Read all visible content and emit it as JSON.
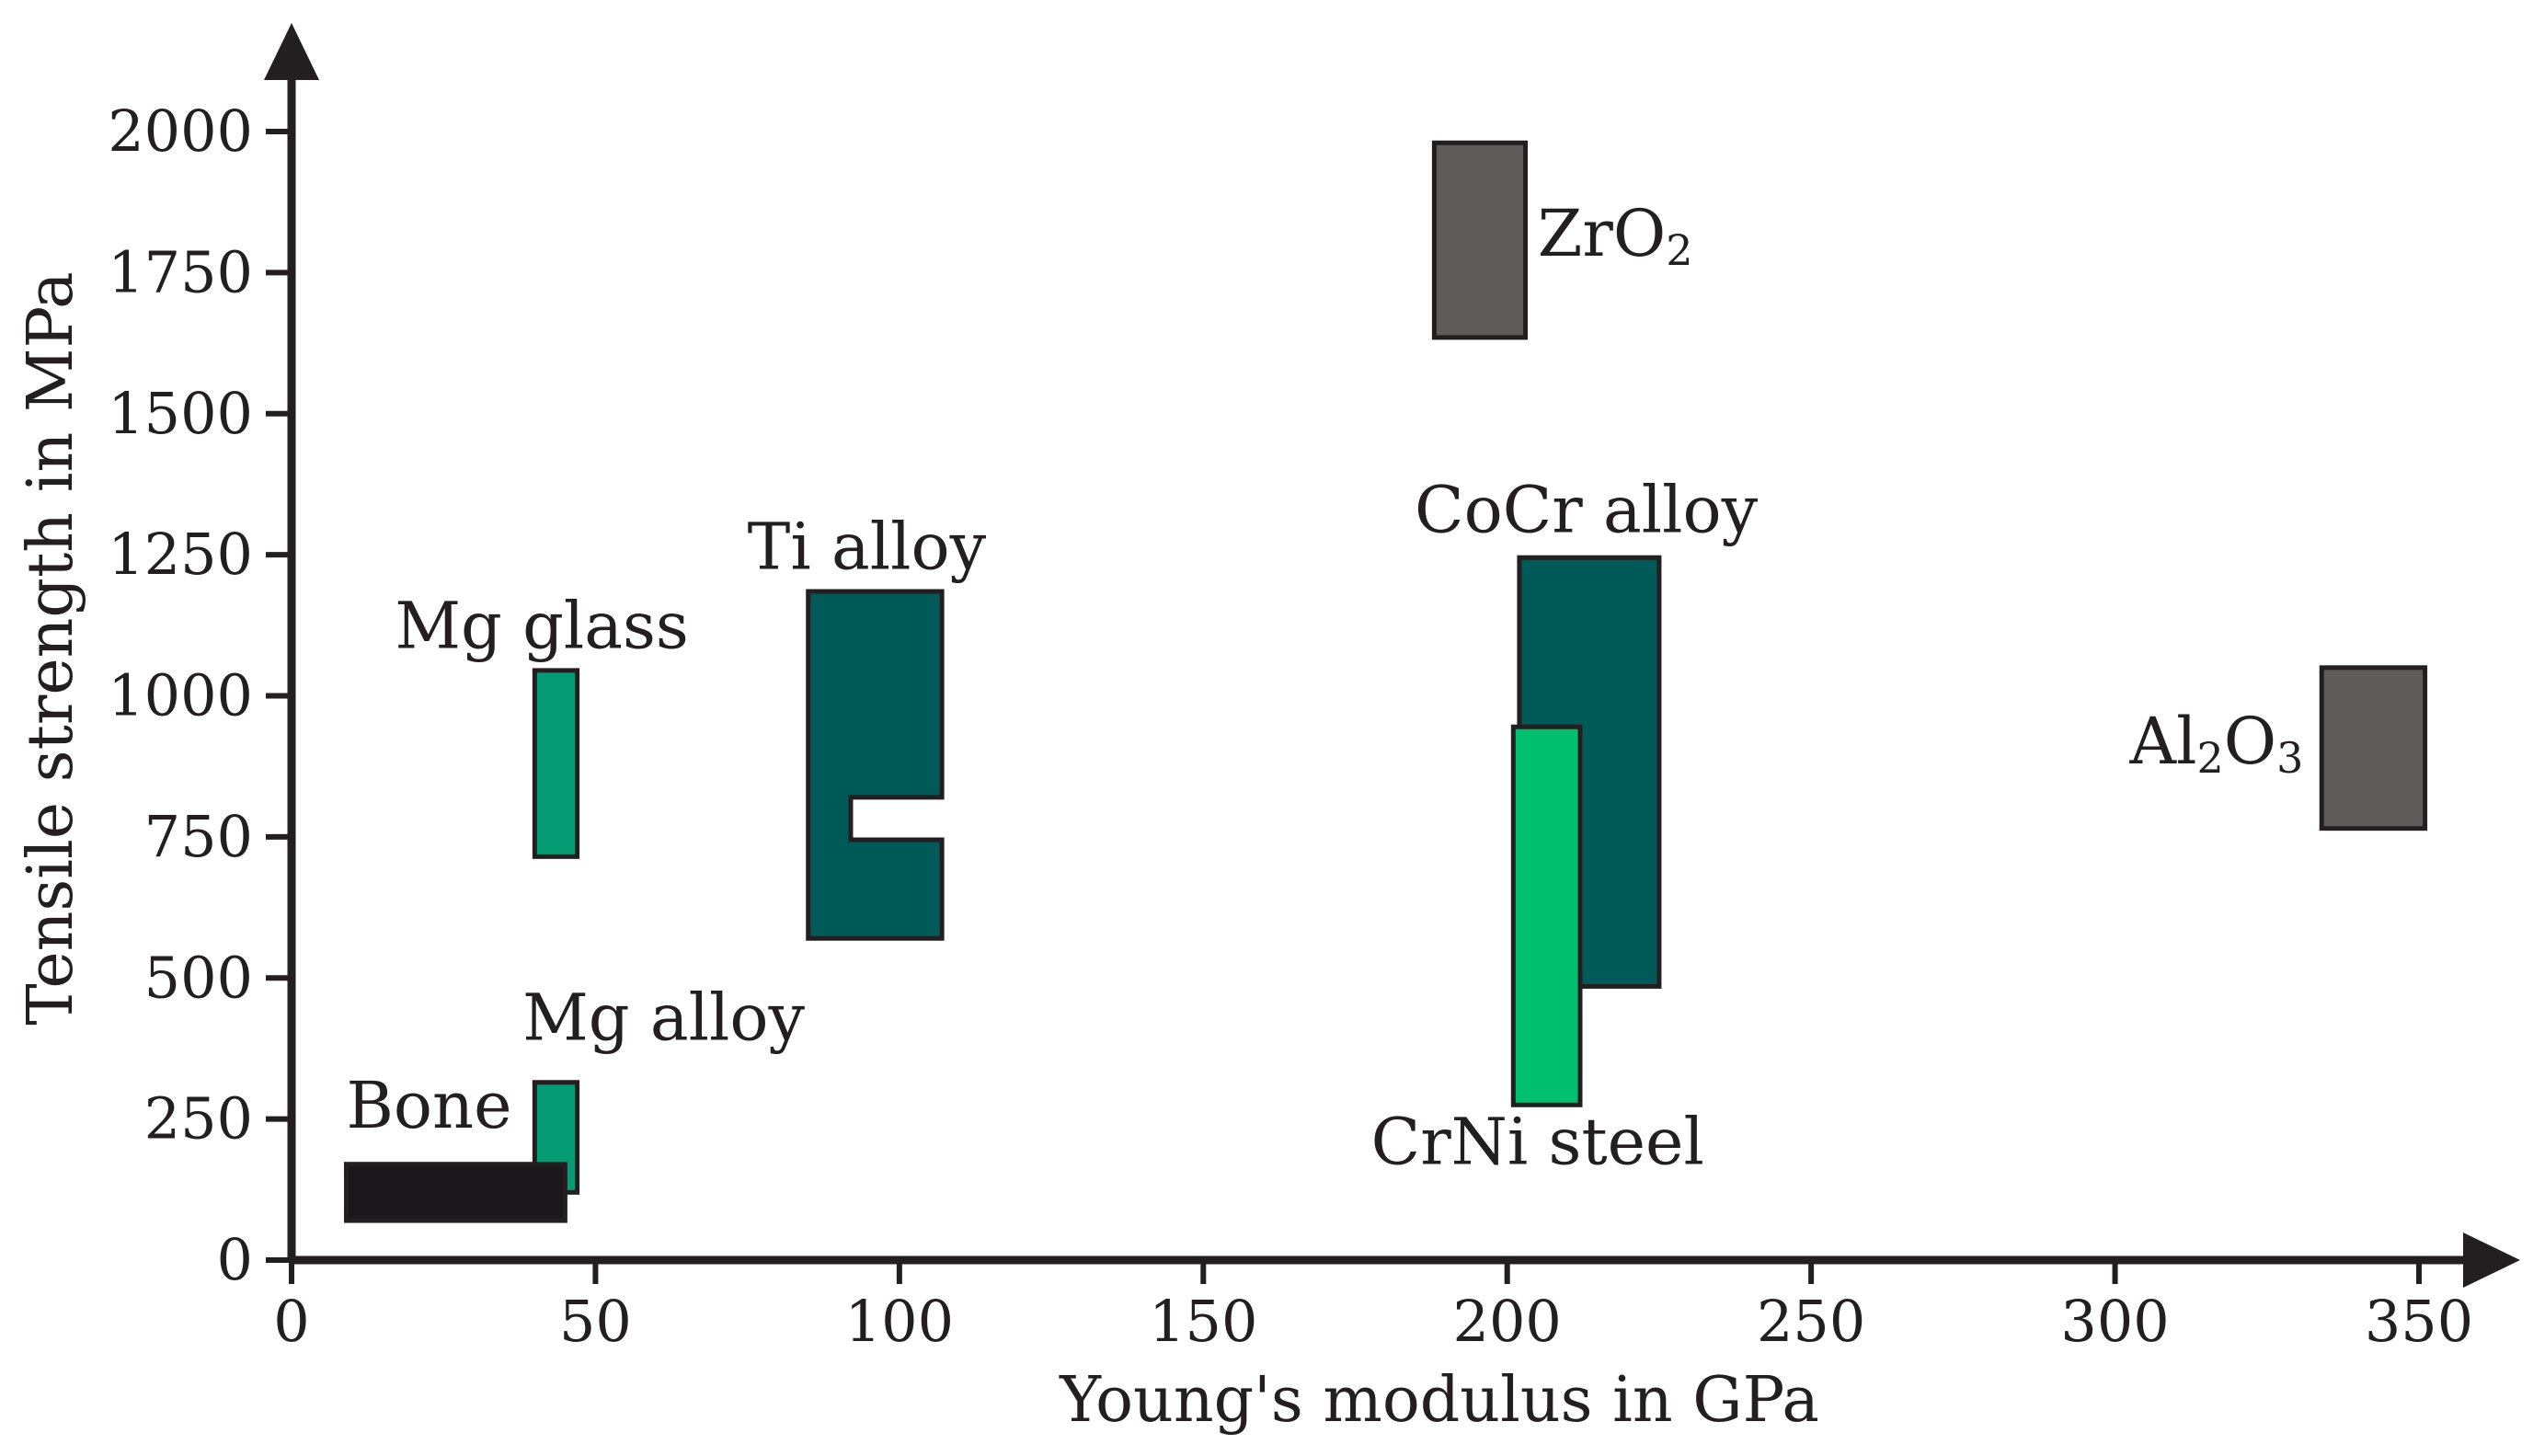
{
  "chart_data": {
    "type": "range-box",
    "title": "",
    "xlabel": "Young's modulus in GPa",
    "ylabel": "Tensile strength in MPa",
    "xlim": [
      0,
      350
    ],
    "ylim": [
      0,
      2000
    ],
    "xticks": [
      "0",
      "50",
      "100",
      "150",
      "200",
      "250",
      "300",
      "350"
    ],
    "xtick_values": [
      0,
      50,
      100,
      150,
      200,
      250,
      300,
      350
    ],
    "yticks": [
      "0",
      "250",
      "500",
      "750",
      "1000",
      "1250",
      "1500",
      "1750",
      "2000"
    ],
    "ytick_values": [
      0,
      250,
      500,
      750,
      1000,
      1250,
      1500,
      1750,
      2000
    ],
    "grid": false,
    "legend": "none",
    "colors": {
      "bone": "#1c171b",
      "mg_alloy": "#069c73",
      "mg_glass": "#069c73",
      "ti_alloy": "#005a57",
      "cocr_alloy": "#005a57",
      "crni_steel": "#00c070",
      "ceramic": "#5f5b59",
      "axis": "#231f20"
    },
    "materials": [
      {
        "id": "mg-alloy",
        "name": "Mg alloy",
        "color_key": "mg_alloy",
        "rects": [
          {
            "x0": 40,
            "x1": 47,
            "y0": 120,
            "y1": 315
          }
        ],
        "label": {
          "text": "Mg alloy",
          "x": 38,
          "y": 390,
          "anchor": "start"
        }
      },
      {
        "id": "bone",
        "name": "Bone",
        "color_key": "bone",
        "rects": [
          {
            "x0": 9,
            "x1": 45,
            "y0": 70,
            "y1": 170
          }
        ],
        "label": {
          "text": "Bone",
          "x": 9,
          "y": 235,
          "anchor": "start"
        }
      },
      {
        "id": "mg-glass",
        "name": "Mg glass",
        "color_key": "mg_glass",
        "rects": [
          {
            "x0": 40,
            "x1": 47,
            "y0": 715,
            "y1": 1045
          }
        ],
        "label": {
          "text": "Mg glass",
          "x": 17,
          "y": 1085,
          "anchor": "start"
        }
      },
      {
        "id": "ti-alloy",
        "name": "Ti alloy",
        "color_key": "ti_alloy",
        "polygon": [
          [
            85,
            570
          ],
          [
            107,
            570
          ],
          [
            107,
            745
          ],
          [
            92,
            745
          ],
          [
            92,
            820
          ],
          [
            107,
            820
          ],
          [
            107,
            1185
          ],
          [
            85,
            1185
          ]
        ],
        "label": {
          "text": "Ti alloy",
          "x": 75,
          "y": 1225,
          "anchor": "start"
        }
      },
      {
        "id": "cocr-alloy",
        "name": "CoCr alloy",
        "color_key": "cocr_alloy",
        "rects": [
          {
            "x0": 202,
            "x1": 225,
            "y0": 485,
            "y1": 1245
          }
        ],
        "label": {
          "text": "CoCr alloy",
          "x": 213,
          "y": 1290,
          "anchor": "middle"
        }
      },
      {
        "id": "crni-steel",
        "name": "CrNi steel",
        "color_key": "crni_steel",
        "rects": [
          {
            "x0": 201,
            "x1": 212,
            "y0": 275,
            "y1": 945
          }
        ],
        "label": {
          "text": "CrNi steel",
          "x": 205,
          "y": 170,
          "anchor": "middle"
        }
      },
      {
        "id": "zro2",
        "name": "ZrO2",
        "color_key": "ceramic",
        "rects": [
          {
            "x0": 188,
            "x1": 203,
            "y0": 1635,
            "y1": 1980
          }
        ],
        "label": {
          "text": "ZrO",
          "sub": "2",
          "x": 205,
          "y": 1780,
          "anchor": "start"
        }
      },
      {
        "id": "al2o3",
        "name": "Al2O3",
        "color_key": "ceramic",
        "rects": [
          {
            "x0": 334,
            "x1": 351,
            "y0": 765,
            "y1": 1050
          }
        ],
        "label": {
          "text": "Al",
          "sub": "2",
          "text2": "O",
          "sub2": "3",
          "x": 331,
          "y": 880,
          "anchor": "end"
        }
      }
    ]
  }
}
